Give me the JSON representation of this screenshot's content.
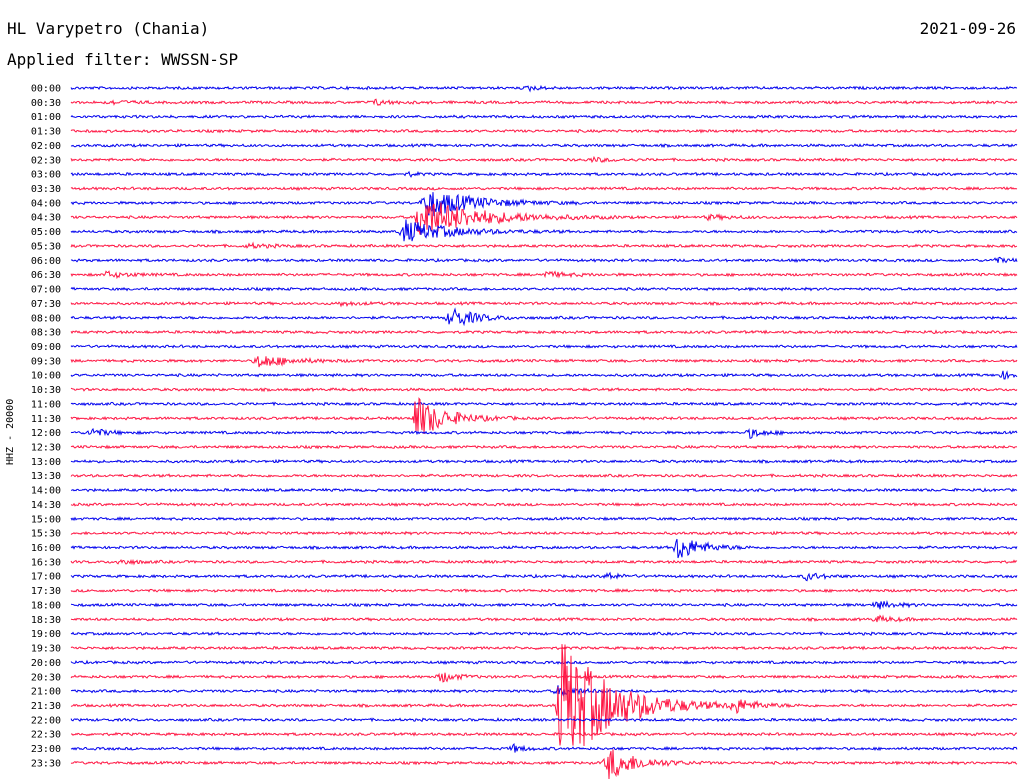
{
  "header": {
    "station": "HL Varypetro (Chania)",
    "date": "2021-09-26",
    "filter": "Applied filter: WWSSN-SP"
  },
  "chart_data": {
    "type": "line",
    "title": "HL Varypetro (Chania)",
    "ylabel": "HHZ - 20000",
    "row_labels": [
      "00:00",
      "00:30",
      "01:00",
      "01:30",
      "02:00",
      "02:30",
      "03:00",
      "03:30",
      "04:00",
      "04:30",
      "05:00",
      "05:30",
      "06:00",
      "06:30",
      "07:00",
      "07:30",
      "08:00",
      "08:30",
      "09:00",
      "09:30",
      "10:00",
      "10:30",
      "11:00",
      "11:30",
      "12:00",
      "12:30",
      "13:00",
      "13:30",
      "14:00",
      "14:30",
      "15:00",
      "15:30",
      "16:00",
      "16:30",
      "17:00",
      "17:30",
      "18:00",
      "18:30",
      "19:00",
      "19:30",
      "20:00",
      "20:30",
      "21:00",
      "21:30",
      "22:00",
      "22:30",
      "23:00",
      "23:30"
    ],
    "colors": [
      "#0000ee",
      "#ff1744"
    ],
    "x_range_minutes": [
      0,
      30
    ],
    "grid": false,
    "events": [
      {
        "row": 0,
        "minute": 14.5,
        "amplitude": 2.5,
        "duration": 0.6
      },
      {
        "row": 1,
        "minute": 1.2,
        "amplitude": 2,
        "duration": 1.0
      },
      {
        "row": 1,
        "minute": 9.6,
        "amplitude": 3,
        "duration": 0.8
      },
      {
        "row": 5,
        "minute": 16.5,
        "amplitude": 2,
        "duration": 1.0
      },
      {
        "row": 6,
        "minute": 10.7,
        "amplitude": 2,
        "duration": 0.4
      },
      {
        "row": 8,
        "minute": 11.2,
        "amplitude": 16,
        "duration": 2.4
      },
      {
        "row": 9,
        "minute": 11.0,
        "amplitude": 22,
        "duration": 3.0
      },
      {
        "row": 9,
        "minute": 20.2,
        "amplitude": 2,
        "duration": 1.2
      },
      {
        "row": 10,
        "minute": 10.5,
        "amplitude": 12,
        "duration": 2.4
      },
      {
        "row": 11,
        "minute": 5.6,
        "amplitude": 2,
        "duration": 1.2
      },
      {
        "row": 12,
        "minute": 29.3,
        "amplitude": 3,
        "duration": 0.6
      },
      {
        "row": 13,
        "minute": 1.1,
        "amplitude": 3,
        "duration": 1.2
      },
      {
        "row": 13,
        "minute": 15.0,
        "amplitude": 3,
        "duration": 1.2
      },
      {
        "row": 15,
        "minute": 8.5,
        "amplitude": 2,
        "duration": 1.0
      },
      {
        "row": 16,
        "minute": 12.0,
        "amplitude": 12,
        "duration": 1.2
      },
      {
        "row": 19,
        "minute": 5.9,
        "amplitude": 7,
        "duration": 1.6
      },
      {
        "row": 20,
        "minute": 29.5,
        "amplitude": 4,
        "duration": 0.6
      },
      {
        "row": 23,
        "minute": 10.9,
        "amplitude": 24,
        "duration": 1.5
      },
      {
        "row": 24,
        "minute": 0.6,
        "amplitude": 5,
        "duration": 0.8
      },
      {
        "row": 24,
        "minute": 21.5,
        "amplitude": 5,
        "duration": 0.8
      },
      {
        "row": 32,
        "minute": 19.2,
        "amplitude": 14,
        "duration": 1.2
      },
      {
        "row": 33,
        "minute": 1.5,
        "amplitude": 3,
        "duration": 0.8
      },
      {
        "row": 34,
        "minute": 17.0,
        "amplitude": 4,
        "duration": 0.6
      },
      {
        "row": 34,
        "minute": 23.3,
        "amplitude": 4,
        "duration": 0.8
      },
      {
        "row": 36,
        "minute": 25.5,
        "amplitude": 4,
        "duration": 1.0
      },
      {
        "row": 37,
        "minute": 25.5,
        "amplitude": 3,
        "duration": 1.0
      },
      {
        "row": 41,
        "minute": 11.7,
        "amplitude": 6,
        "duration": 0.8
      },
      {
        "row": 42,
        "minute": 15.4,
        "amplitude": 5,
        "duration": 1.2
      },
      {
        "row": 43,
        "minute": 15.5,
        "amplitude": 70,
        "duration": 2.6
      },
      {
        "row": 43,
        "minute": 21.0,
        "amplitude": 8,
        "duration": 1.2
      },
      {
        "row": 46,
        "minute": 14.0,
        "amplitude": 4,
        "duration": 0.6
      },
      {
        "row": 47,
        "minute": 17.0,
        "amplitude": 18,
        "duration": 1.5
      }
    ]
  }
}
